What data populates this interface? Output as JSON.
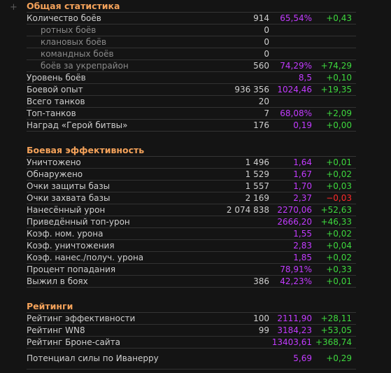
{
  "expand_glyph": "+",
  "colors": {
    "section_title": "#f4a25a",
    "percent": "#c23bff",
    "delta_positive": "#3ed83e",
    "delta_negative": "#ff2a2a"
  },
  "sections": [
    {
      "title": "Общая статистика",
      "rows": [
        {
          "label": "Количество боёв",
          "value": "914",
          "pct": "65,54%",
          "delta": "+0,43"
        },
        {
          "label": "ротных боёв",
          "value": "0",
          "pct": "",
          "delta": "",
          "sub": true
        },
        {
          "label": "клановых боёв",
          "value": "0",
          "pct": "",
          "delta": "",
          "sub": true
        },
        {
          "label": "командных боёв",
          "value": "0",
          "pct": "",
          "delta": "",
          "sub": true
        },
        {
          "label": "боёв за укрепрайон",
          "value": "560",
          "pct": "74,29%",
          "delta": "+74,29",
          "sub": true
        },
        {
          "label": "Уровень боёв",
          "value": "",
          "pct": "8,5",
          "delta": "+0,10"
        },
        {
          "label": "Боевой опыт",
          "value": "936 356",
          "pct": "1024,46",
          "delta": "+19,35"
        },
        {
          "label": "Всего танков",
          "value": "20",
          "pct": "",
          "delta": ""
        },
        {
          "label": "Топ-танков",
          "value": "7",
          "pct": "68,08%",
          "delta": "+2,09"
        },
        {
          "label": "Наград «Герой битвы»",
          "value": "176",
          "pct": "0,19",
          "delta": "+0,00"
        }
      ]
    },
    {
      "title": "Боевая эффективность",
      "rows": [
        {
          "label": "Уничтожено",
          "value": "1 496",
          "pct": "1,64",
          "delta": "+0,01"
        },
        {
          "label": "Обнаружено",
          "value": "1 529",
          "pct": "1,67",
          "delta": "+0,02"
        },
        {
          "label": "Очки защиты базы",
          "value": "1 557",
          "pct": "1,70",
          "delta": "+0,03"
        },
        {
          "label": "Очки захвата базы",
          "value": "2 169",
          "pct": "2,37",
          "delta": "−0,03",
          "neg": true
        },
        {
          "label": "Нанесённый урон",
          "value": "2 074 838",
          "pct": "2270,06",
          "delta": "+52,63"
        },
        {
          "label": "Приведённый топ-урон",
          "value": "",
          "pct": "2666,20",
          "delta": "+46,33"
        },
        {
          "label": "Коэф. ном. урона",
          "value": "",
          "pct": "1,55",
          "delta": "+0,02"
        },
        {
          "label": "Коэф. уничтожения",
          "value": "",
          "pct": "2,83",
          "delta": "+0,04"
        },
        {
          "label": "Коэф. нанес./получ. урона",
          "value": "",
          "pct": "1,85",
          "delta": "+0,02"
        },
        {
          "label": "Процент попадания",
          "value": "",
          "pct": "78,91%",
          "delta": "+0,33"
        },
        {
          "label": "Выжил в боях",
          "value": "386",
          "pct": "42,23%",
          "delta": "+0,01"
        }
      ]
    },
    {
      "title": "Рейтинги",
      "rows": [
        {
          "label": "Рейтинг эффективности",
          "value": "100",
          "pct": "2111,90",
          "delta": "+28,11"
        },
        {
          "label": "Рейтинг WN8",
          "value": "99",
          "pct": "3184,23",
          "delta": "+53,05"
        },
        {
          "label": "Рейтинг Броне-сайта",
          "value": "",
          "pct": "13403,61",
          "delta": "+368,74"
        },
        {
          "label": "Потенциал силы по Иванерру",
          "value": "",
          "pct": "5,69",
          "delta": "+0,29",
          "wrap": true
        }
      ]
    }
  ]
}
